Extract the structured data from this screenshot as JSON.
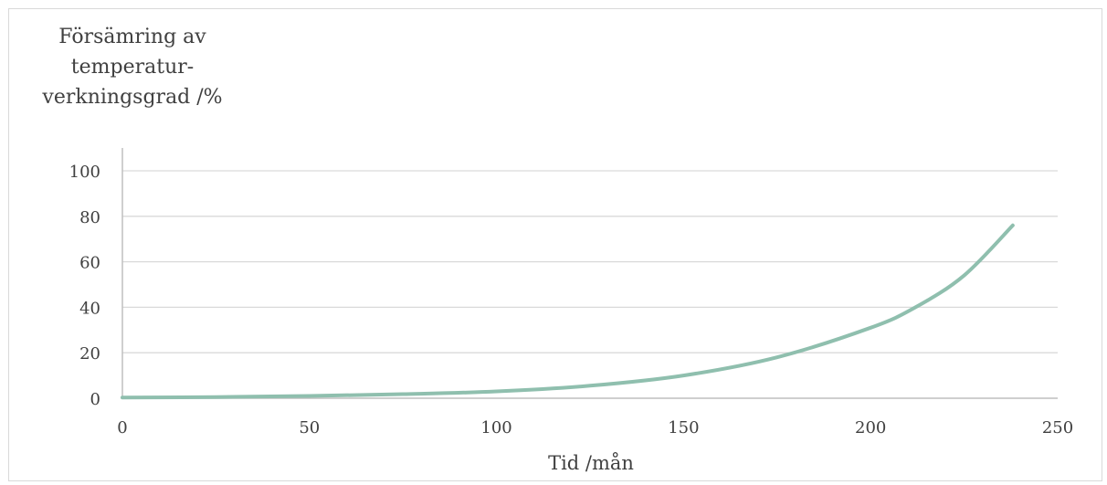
{
  "chart_data": {
    "type": "line",
    "ylabel_lines": [
      "Försämring av",
      "temperatur-",
      "verkningsgrad /%"
    ],
    "xlabel": "Tid /mån",
    "xlim": [
      0,
      250
    ],
    "ylim": [
      0,
      100
    ],
    "x_ticks": [
      0,
      50,
      100,
      150,
      200,
      250
    ],
    "y_ticks": [
      0,
      20,
      40,
      60,
      80,
      100
    ],
    "grid": "horizontal",
    "legend": "none",
    "line_color": "#8fbfae",
    "series": [
      {
        "x": [
          0,
          25,
          50,
          75,
          100,
          125,
          150,
          175,
          200,
          212,
          225,
          238
        ],
        "values": [
          0.3,
          0.5,
          1,
          1.8,
          3,
          5.5,
          10,
          18,
          31,
          40,
          54,
          76
        ]
      }
    ]
  }
}
